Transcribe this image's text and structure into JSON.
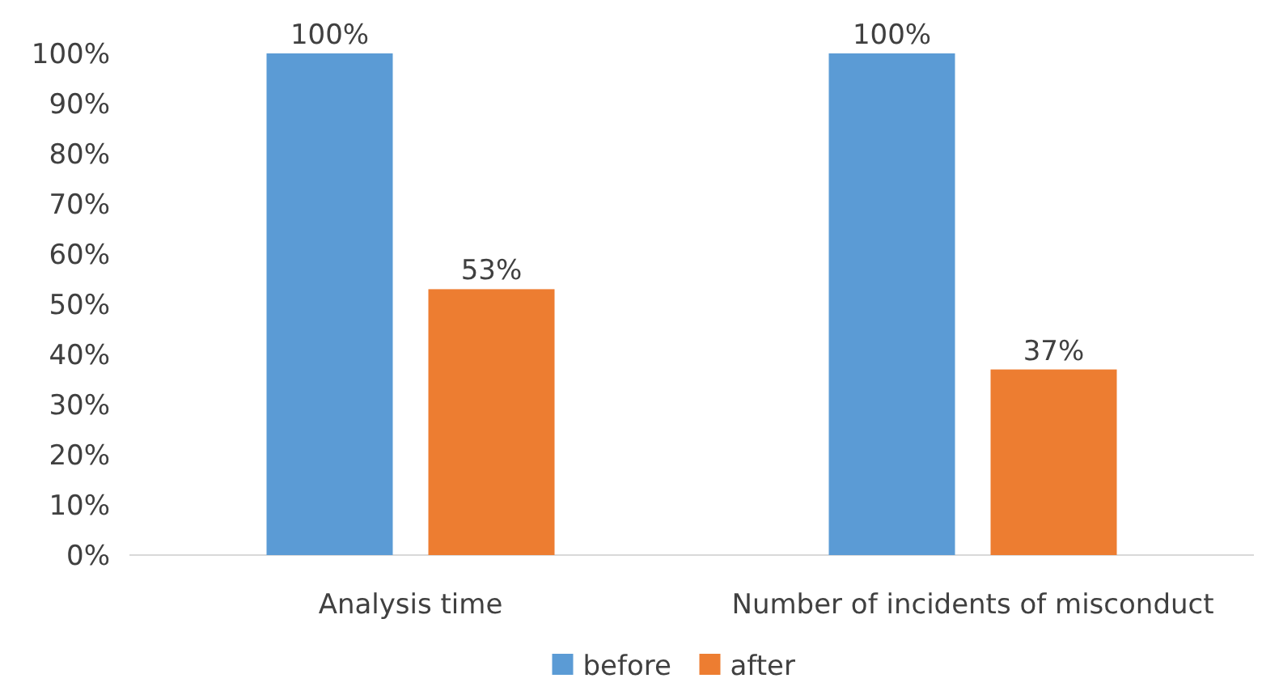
{
  "chart_data": {
    "type": "bar",
    "categories": [
      "Analysis time",
      "Number of incidents of misconduct"
    ],
    "series": [
      {
        "name": "before",
        "color": "#5b9bd5",
        "values": [
          100,
          100
        ],
        "value_labels": [
          "100%",
          "100%"
        ]
      },
      {
        "name": "after",
        "color": "#ed7d31",
        "values": [
          53,
          37
        ],
        "value_labels": [
          "53%",
          "37%"
        ]
      }
    ],
    "ylim": [
      0,
      100
    ],
    "yticks": [
      {
        "value": 0,
        "label": "0%"
      },
      {
        "value": 10,
        "label": "10%"
      },
      {
        "value": 20,
        "label": "20%"
      },
      {
        "value": 30,
        "label": "30%"
      },
      {
        "value": 40,
        "label": "40%"
      },
      {
        "value": 50,
        "label": "50%"
      },
      {
        "value": 60,
        "label": "60%"
      },
      {
        "value": 70,
        "label": "70%"
      },
      {
        "value": 80,
        "label": "80%"
      },
      {
        "value": 90,
        "label": "90%"
      },
      {
        "value": 100,
        "label": "100%"
      }
    ],
    "grid": false,
    "legend": "bottom"
  }
}
